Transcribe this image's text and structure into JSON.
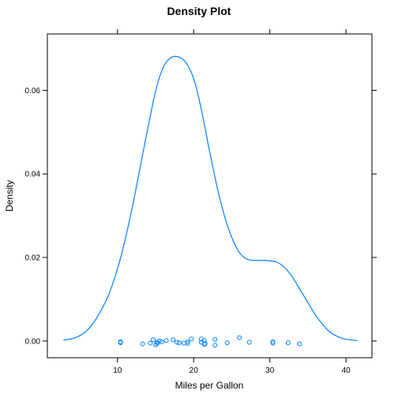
{
  "chart_data": {
    "type": "line",
    "title": "Density Plot",
    "xlabel": "Miles per Gallon",
    "ylabel": "Density",
    "xlim": [
      0.8,
      43.4
    ],
    "ylim": [
      -0.004,
      0.0735
    ],
    "x_ticks": [
      10,
      20,
      30,
      40
    ],
    "y_ticks": [
      0.0,
      0.02,
      0.04,
      0.06
    ],
    "y_tick_labels": [
      "0.00",
      "0.02",
      "0.04",
      "0.06"
    ],
    "grid": false,
    "series": [
      {
        "color": "#0080ff",
        "x": [
          2.9,
          4.5,
          6.0,
          7.5,
          9.0,
          10.5,
          12.0,
          13.5,
          15.0,
          16.0,
          17.0,
          18.0,
          19.0,
          20.0,
          21.0,
          22.0,
          23.0,
          24.0,
          25.0,
          26.0,
          27.0,
          28.0,
          29.0,
          30.0,
          31.0,
          32.0,
          33.0,
          34.0,
          35.0,
          36.0,
          37.0,
          38.0,
          39.0,
          40.0,
          41.5
        ],
        "values": [
          0.0002,
          0.0008,
          0.0025,
          0.0062,
          0.0118,
          0.0205,
          0.0325,
          0.0465,
          0.0598,
          0.0655,
          0.0678,
          0.068,
          0.0666,
          0.0628,
          0.0555,
          0.0462,
          0.0375,
          0.0302,
          0.0248,
          0.0212,
          0.0196,
          0.0193,
          0.0193,
          0.0192,
          0.0188,
          0.0175,
          0.0152,
          0.0122,
          0.0092,
          0.0062,
          0.0038,
          0.002,
          0.001,
          0.0004,
          0.0001
        ]
      }
    ],
    "rug_points": [
      {
        "x": 10.4,
        "y": -0.0002
      },
      {
        "x": 10.4,
        "y": -0.0004
      },
      {
        "x": 13.3,
        "y": -0.0007
      },
      {
        "x": 14.3,
        "y": -0.0005
      },
      {
        "x": 14.7,
        "y": 0.0003
      },
      {
        "x": 15.0,
        "y": -0.0009
      },
      {
        "x": 15.2,
        "y": -0.0003
      },
      {
        "x": 15.2,
        "y": -0.0006
      },
      {
        "x": 15.5,
        "y": 0.0
      },
      {
        "x": 15.8,
        "y": -0.0002
      },
      {
        "x": 16.4,
        "y": 0.0001
      },
      {
        "x": 17.3,
        "y": 0.0003
      },
      {
        "x": 17.8,
        "y": -0.0003
      },
      {
        "x": 18.1,
        "y": -0.0004
      },
      {
        "x": 18.7,
        "y": -0.0005
      },
      {
        "x": 19.2,
        "y": -0.0002
      },
      {
        "x": 19.2,
        "y": -0.0006
      },
      {
        "x": 19.7,
        "y": 0.0005
      },
      {
        "x": 21.0,
        "y": 0.0005
      },
      {
        "x": 21.0,
        "y": -0.0003
      },
      {
        "x": 21.4,
        "y": -0.0008
      },
      {
        "x": 21.4,
        "y": 0.0001
      },
      {
        "x": 21.5,
        "y": -0.0006
      },
      {
        "x": 22.8,
        "y": 0.0004
      },
      {
        "x": 22.8,
        "y": -0.001
      },
      {
        "x": 24.4,
        "y": -0.0004
      },
      {
        "x": 26.0,
        "y": 0.0008
      },
      {
        "x": 27.3,
        "y": -0.0003
      },
      {
        "x": 30.4,
        "y": -0.0002
      },
      {
        "x": 30.4,
        "y": -0.0005
      },
      {
        "x": 32.4,
        "y": -0.0004
      },
      {
        "x": 33.9,
        "y": -0.0007
      }
    ]
  }
}
